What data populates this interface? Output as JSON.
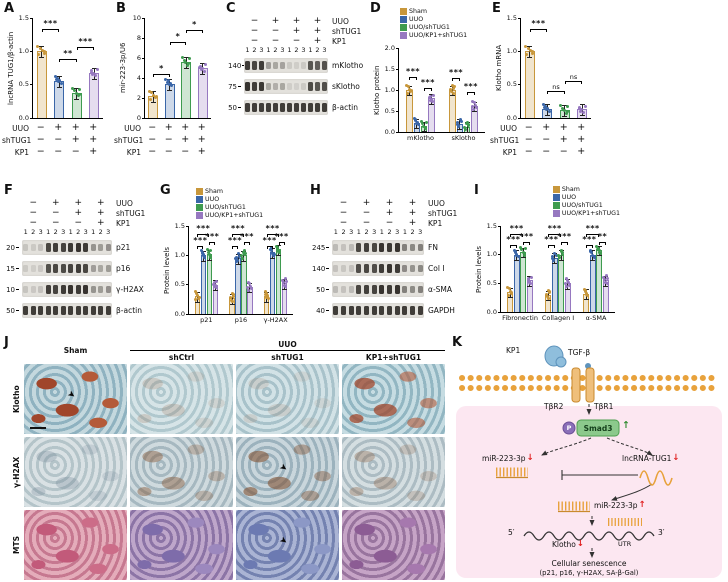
{
  "colors": {
    "sham": "#C8973B",
    "uuo": "#3A66A8",
    "shtug1": "#3E9B4F",
    "kp1": "#9678C0",
    "band": "#23201C",
    "membrane": "#E8A23C",
    "smad_box": "#8CC98C",
    "cell_interior_pink": "#FCE7F1",
    "red_arrow": "#E02020"
  },
  "legend_series": [
    "Sham",
    "UUO",
    "UUO/shTUG1",
    "UUO/KP1+shTUG1"
  ],
  "treatment_matrix": {
    "rows": [
      {
        "label": "UUO",
        "values": [
          "−",
          "+",
          "+",
          "+"
        ]
      },
      {
        "label": "shTUG1",
        "values": [
          "−",
          "−",
          "+",
          "+"
        ]
      },
      {
        "label": "KP1",
        "values": [
          "−",
          "−",
          "−",
          "+"
        ]
      }
    ]
  },
  "lane_numbers": [
    "1",
    "2",
    "3",
    "1",
    "2",
    "3",
    "1",
    "2",
    "3",
    "1",
    "2",
    "3"
  ],
  "icons": {
    "up_arrow": "↑",
    "down_arrow": "↓",
    "tile_arrow": "➤"
  },
  "panel_A": {
    "label": "A",
    "chart_data": {
      "type": "bar",
      "ylabel": "lncRNA TUG1/β-actin",
      "ylim": [
        0,
        1.5
      ],
      "yticks": [
        "0.0",
        "0.5",
        "1.0",
        "1.5"
      ],
      "groups": [
        "Sham",
        "UUO",
        "UUO/shTUG1",
        "UUO/KP1+shTUG1"
      ],
      "values": [
        1.0,
        0.55,
        0.38,
        0.68
      ],
      "sig": [
        {
          "from": 0,
          "to": 1,
          "label": "***",
          "h": 1.33
        },
        {
          "from": 1,
          "to": 2,
          "label": "**",
          "h": 0.88
        },
        {
          "from": 2,
          "to": 3,
          "label": "***",
          "h": 1.06
        }
      ]
    }
  },
  "panel_B": {
    "label": "B",
    "chart_data": {
      "type": "bar",
      "ylabel": "mir-223-3p/U6",
      "ylim": [
        0,
        10
      ],
      "yticks": [
        "0",
        "2",
        "4",
        "6",
        "8",
        "10"
      ],
      "groups": [
        "Sham",
        "UUO",
        "UUO/shTUG1",
        "UUO/KP1+shTUG1"
      ],
      "values": [
        2.2,
        3.4,
        5.6,
        5.0
      ],
      "sig": [
        {
          "from": 0,
          "to": 1,
          "label": "*",
          "h": 4.4
        },
        {
          "from": 1,
          "to": 2,
          "label": "*",
          "h": 7.6
        },
        {
          "from": 2,
          "to": 3,
          "label": "*",
          "h": 8.8
        }
      ]
    }
  },
  "panel_C": {
    "label": "C",
    "blot": {
      "rows": [
        {
          "marker": "140",
          "target": "mKlotho",
          "intensities": [
            0.85,
            0.8,
            0.85,
            0.35,
            0.3,
            0.32,
            0.12,
            0.1,
            0.12,
            0.72,
            0.68,
            0.74
          ]
        },
        {
          "marker": "75",
          "target": "sKlotho",
          "intensities": [
            0.9,
            0.85,
            0.88,
            0.3,
            0.26,
            0.3,
            0.1,
            0.09,
            0.12,
            0.78,
            0.72,
            0.76
          ]
        },
        {
          "marker": "50",
          "target": "β-actin",
          "intensities": [
            0.85,
            0.85,
            0.85,
            0.85,
            0.85,
            0.85,
            0.85,
            0.85,
            0.85,
            0.85,
            0.85,
            0.85
          ]
        }
      ]
    }
  },
  "panel_D": {
    "label": "D",
    "chart_data": {
      "type": "grouped-bar",
      "ylabel": "Klotho protein",
      "ylim": [
        0,
        2.0
      ],
      "yticks": [
        "0.0",
        "0.5",
        "1.0",
        "1.5",
        "2.0"
      ],
      "categories": [
        "mKlotho",
        "sKlotho"
      ],
      "series": [
        {
          "name": "Sham",
          "values": [
            1.0,
            1.0
          ]
        },
        {
          "name": "UUO",
          "values": [
            0.22,
            0.2
          ]
        },
        {
          "name": "UUO/shTUG1",
          "values": [
            0.15,
            0.13
          ]
        },
        {
          "name": "UUO/KP1+shTUG1",
          "values": [
            0.8,
            0.62
          ]
        }
      ],
      "sig": [
        {
          "cat": 0,
          "from": 0,
          "to": 1,
          "label": "***",
          "h": 1.32
        },
        {
          "cat": 0,
          "from": 2,
          "to": 3,
          "label": "***",
          "h": 1.05
        },
        {
          "cat": 1,
          "from": 0,
          "to": 1,
          "label": "***",
          "h": 1.28
        },
        {
          "cat": 1,
          "from": 2,
          "to": 3,
          "label": "***",
          "h": 0.95
        }
      ]
    }
  },
  "panel_E": {
    "label": "E",
    "chart_data": {
      "type": "bar",
      "ylabel": "Klotho mRNA",
      "ylim": [
        0,
        1.5
      ],
      "yticks": [
        "0.0",
        "0.5",
        "1.0",
        "1.5"
      ],
      "groups": [
        "Sham",
        "UUO",
        "UUO/shTUG1",
        "UUO/KP1+shTUG1"
      ],
      "values": [
        1.0,
        0.13,
        0.12,
        0.13
      ],
      "sig": [
        {
          "from": 0,
          "to": 1,
          "label": "***",
          "h": 1.34
        },
        {
          "from": 1,
          "to": 2,
          "label": "ns",
          "h": 0.4
        },
        {
          "from": 2,
          "to": 3,
          "label": "ns",
          "h": 0.56
        }
      ]
    }
  },
  "panel_F": {
    "label": "F",
    "blot": {
      "rows": [
        {
          "marker": "20",
          "target": "p21",
          "intensities": [
            0.15,
            0.12,
            0.16,
            0.8,
            0.85,
            0.82,
            0.88,
            0.9,
            0.86,
            0.4,
            0.36,
            0.42
          ]
        },
        {
          "marker": "15",
          "target": "p16",
          "intensities": [
            0.12,
            0.1,
            0.13,
            0.75,
            0.8,
            0.78,
            0.82,
            0.85,
            0.8,
            0.35,
            0.3,
            0.36
          ]
        },
        {
          "marker": "10",
          "target": "γ-H2AX",
          "intensities": [
            0.15,
            0.13,
            0.16,
            0.85,
            0.82,
            0.86,
            0.9,
            0.86,
            0.9,
            0.4,
            0.36,
            0.42
          ]
        },
        {
          "marker": "50",
          "target": "β-actin",
          "intensities": [
            0.85,
            0.85,
            0.85,
            0.85,
            0.85,
            0.85,
            0.85,
            0.85,
            0.85,
            0.85,
            0.85,
            0.85
          ]
        }
      ]
    }
  },
  "panel_G": {
    "label": "G",
    "chart_data": {
      "type": "grouped-bar",
      "ylabel": "Protein levels",
      "ylim": [
        0,
        1.5
      ],
      "yticks": [
        "0.0",
        "0.5",
        "1.0",
        "1.5"
      ],
      "categories": [
        "p21",
        "p16",
        "γ-H2AX"
      ],
      "series": [
        {
          "name": "Sham",
          "values": [
            0.3,
            0.27,
            0.3
          ]
        },
        {
          "name": "UUO",
          "values": [
            1.0,
            0.95,
            1.05
          ]
        },
        {
          "name": "UUO/shTUG1",
          "values": [
            1.02,
            1.0,
            1.1
          ]
        },
        {
          "name": "UUO/KP1+shTUG1",
          "values": [
            0.5,
            0.46,
            0.52
          ]
        }
      ],
      "sig": [
        {
          "cat": 0,
          "from": 0,
          "to": 1,
          "label": "***",
          "h": 1.16
        },
        {
          "cat": 0,
          "from": 0,
          "to": 2,
          "label": "***",
          "h": 1.36
        },
        {
          "cat": 0,
          "from": 2,
          "to": 3,
          "label": "***",
          "h": 1.22
        },
        {
          "cat": 1,
          "from": 0,
          "to": 1,
          "label": "***",
          "h": 1.16
        },
        {
          "cat": 1,
          "from": 0,
          "to": 2,
          "label": "***",
          "h": 1.36
        },
        {
          "cat": 1,
          "from": 2,
          "to": 3,
          "label": "***",
          "h": 1.22
        },
        {
          "cat": 2,
          "from": 0,
          "to": 1,
          "label": "***",
          "h": 1.16
        },
        {
          "cat": 2,
          "from": 0,
          "to": 2,
          "label": "***",
          "h": 1.36
        },
        {
          "cat": 2,
          "from": 2,
          "to": 3,
          "label": "***",
          "h": 1.22
        }
      ]
    }
  },
  "panel_H": {
    "label": "H",
    "blot": {
      "rows": [
        {
          "marker": "245",
          "target": "FN",
          "intensities": [
            0.2,
            0.16,
            0.2,
            0.8,
            0.84,
            0.8,
            0.9,
            0.88,
            0.9,
            0.5,
            0.46,
            0.5
          ]
        },
        {
          "marker": "140",
          "target": "Col I",
          "intensities": [
            0.16,
            0.14,
            0.16,
            0.76,
            0.8,
            0.76,
            0.86,
            0.9,
            0.86,
            0.45,
            0.4,
            0.46
          ]
        },
        {
          "marker": "50",
          "target": "α-SMA",
          "intensities": [
            0.2,
            0.16,
            0.2,
            0.8,
            0.84,
            0.82,
            0.9,
            0.86,
            0.9,
            0.5,
            0.44,
            0.5
          ]
        },
        {
          "marker": "40",
          "target": "GAPDH",
          "intensities": [
            0.85,
            0.85,
            0.85,
            0.85,
            0.85,
            0.85,
            0.85,
            0.85,
            0.85,
            0.85,
            0.85,
            0.85
          ]
        }
      ]
    }
  },
  "panel_I": {
    "label": "I",
    "chart_data": {
      "type": "grouped-bar",
      "ylabel": "Protein levels",
      "ylim": [
        0,
        1.5
      ],
      "yticks": [
        "0.0",
        "0.5",
        "1.0",
        "1.5"
      ],
      "categories": [
        "Fibronectin",
        "Collagen I",
        "α-SMA"
      ],
      "series": [
        {
          "name": "Sham",
          "values": [
            0.35,
            0.3,
            0.32
          ]
        },
        {
          "name": "UUO",
          "values": [
            1.0,
            0.95,
            1.0
          ]
        },
        {
          "name": "UUO/shTUG1",
          "values": [
            1.05,
            1.0,
            1.08
          ]
        },
        {
          "name": "UUO/KP1+shTUG1",
          "values": [
            0.55,
            0.5,
            0.55
          ]
        }
      ],
      "sig": [
        {
          "cat": 0,
          "from": 0,
          "to": 1,
          "label": "***",
          "h": 1.16
        },
        {
          "cat": 0,
          "from": 0,
          "to": 2,
          "label": "***",
          "h": 1.36
        },
        {
          "cat": 0,
          "from": 2,
          "to": 3,
          "label": "***",
          "h": 1.22
        },
        {
          "cat": 1,
          "from": 0,
          "to": 1,
          "label": "***",
          "h": 1.16
        },
        {
          "cat": 1,
          "from": 0,
          "to": 2,
          "label": "***",
          "h": 1.36
        },
        {
          "cat": 1,
          "from": 2,
          "to": 3,
          "label": "***",
          "h": 1.22
        },
        {
          "cat": 2,
          "from": 0,
          "to": 1,
          "label": "***",
          "h": 1.16
        },
        {
          "cat": 2,
          "from": 0,
          "to": 2,
          "label": "***",
          "h": 1.36
        },
        {
          "cat": 2,
          "from": 2,
          "to": 3,
          "label": "**",
          "h": 1.22
        }
      ]
    }
  },
  "panel_J": {
    "label": "J",
    "group_label": "UUO",
    "col_headers": [
      "Sham",
      "shCtrl",
      "shTUG1",
      "KP1+shTUG1"
    ],
    "row_labels": [
      "Klotho",
      "γ-H2AX",
      "MTS"
    ],
    "arrow_cells": [
      [
        0,
        0
      ],
      [
        1,
        2
      ],
      [
        2,
        2
      ]
    ],
    "scale_bar_cell": [
      0,
      0
    ]
  },
  "panel_K": {
    "label": "K",
    "kp1": "KP1",
    "tgf_beta": "TGF-β",
    "tbr2": "TβR2",
    "tbr1": "TβR1",
    "phospho": "P",
    "smad3": "Smad3",
    "mir_sponge": "miR-223-3p",
    "lncrna": "lncRNA-TUG1",
    "mir_mature": "miR-223-3p",
    "five_prime": "5′",
    "three_prime": "3′",
    "utr": "UTR",
    "klotho": "Klotho",
    "senescence": "Cellular senescence",
    "senescence_markers": "(p21, p16, γ-H2AX, SA-β-Gal)"
  }
}
